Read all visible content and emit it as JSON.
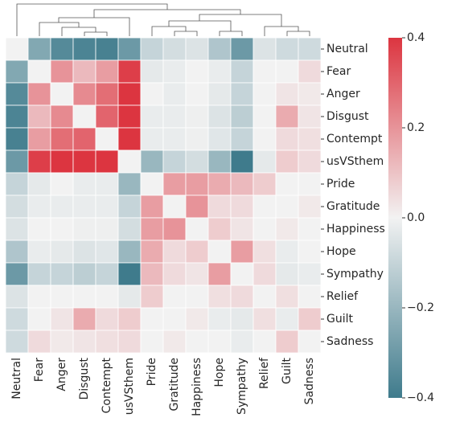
{
  "chart_data": {
    "type": "heatmap",
    "categories": [
      "Neutral",
      "Fear",
      "Anger",
      "Disgust",
      "Contempt",
      "usVSthem",
      "Pride",
      "Gratitude",
      "Happiness",
      "Hope",
      "Sympathy",
      "Relief",
      "Guilt",
      "Sadness"
    ],
    "values": [
      [
        0,
        -0.25,
        -0.35,
        -0.37,
        -0.38,
        -0.3,
        -0.1,
        -0.07,
        -0.05,
        -0.15,
        -0.3,
        -0.05,
        -0.08,
        -0.08
      ],
      [
        -0.25,
        0,
        0.2,
        0.12,
        0.18,
        0.38,
        -0.03,
        -0.02,
        0,
        -0.02,
        -0.1,
        0,
        0,
        0.05
      ],
      [
        -0.35,
        0.2,
        0,
        0.22,
        0.28,
        0.4,
        0,
        -0.02,
        0,
        -0.03,
        -0.1,
        0,
        0.03,
        0.02
      ],
      [
        -0.37,
        0.12,
        0.22,
        0,
        0.3,
        0.4,
        -0.02,
        -0.02,
        -0.01,
        -0.05,
        -0.12,
        0,
        0.15,
        0.03
      ],
      [
        -0.38,
        0.18,
        0.28,
        0.3,
        0,
        0.4,
        -0.02,
        -0.02,
        -0.01,
        -0.04,
        -0.1,
        0,
        0.05,
        0.04
      ],
      [
        -0.3,
        0.38,
        0.4,
        0.4,
        0.4,
        0,
        -0.2,
        -0.1,
        -0.07,
        -0.2,
        -0.4,
        -0.03,
        0.08,
        0.05
      ],
      [
        -0.1,
        -0.03,
        0,
        -0.02,
        -0.02,
        -0.2,
        0,
        0.18,
        0.18,
        0.15,
        0.12,
        0.08,
        0,
        0
      ],
      [
        -0.07,
        -0.02,
        -0.02,
        -0.02,
        -0.02,
        -0.1,
        0.18,
        0,
        0.2,
        0.05,
        0.05,
        0,
        0,
        0.02
      ],
      [
        -0.05,
        0,
        0,
        -0.01,
        -0.01,
        -0.07,
        0.18,
        0.2,
        0,
        0.08,
        0.03,
        0,
        0.02,
        0
      ],
      [
        -0.15,
        -0.02,
        -0.03,
        -0.05,
        -0.04,
        -0.2,
        0.15,
        0.05,
        0.08,
        0,
        0.18,
        0.04,
        -0.02,
        0
      ],
      [
        -0.3,
        -0.1,
        -0.1,
        -0.12,
        -0.1,
        -0.4,
        0.12,
        0.05,
        0.03,
        0.18,
        0,
        0.05,
        -0.03,
        -0.02
      ],
      [
        -0.05,
        0,
        0,
        0,
        0,
        -0.03,
        0.08,
        0,
        0,
        0.04,
        0.05,
        0,
        0.04,
        0
      ],
      [
        -0.08,
        0,
        0.03,
        0.15,
        0.05,
        0.08,
        0,
        0,
        0.02,
        -0.02,
        -0.03,
        0.04,
        -0.02,
        0.08
      ],
      [
        -0.08,
        0.05,
        0.02,
        0.03,
        0.04,
        0.05,
        0,
        0.02,
        0,
        0,
        -0.02,
        0,
        0.08,
        0
      ]
    ],
    "colors": [
      "#3f7b8c",
      "#f2f2f2",
      "#dc3540"
    ],
    "vlim": [
      -0.4,
      0.4
    ],
    "colorbar_ticks": [
      0.4,
      0.2,
      {
        "value": 0,
        "label": "0.0"
      },
      {
        "value": -0.2,
        "label": "−0.2"
      },
      {
        "value": -0.4,
        "label": "−0.4"
      }
    ]
  }
}
